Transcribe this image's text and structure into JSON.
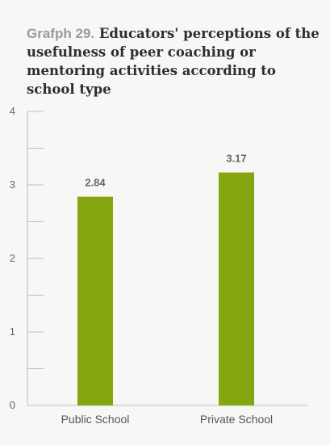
{
  "chart_data": {
    "type": "bar",
    "title_prefix": "Grafph 29.",
    "title": "Educators' perceptions of the usefulness of peer coaching or mentoring activities according to school type",
    "categories": [
      "Public School",
      "Private School"
    ],
    "values": [
      2.84,
      3.17
    ],
    "value_labels": [
      "2.84",
      "3.17"
    ],
    "ylim": [
      0,
      4
    ],
    "yticks": [
      0,
      1,
      2,
      3,
      4
    ],
    "xlabel": "",
    "ylabel": "",
    "grid": false,
    "bar_color": "#86a610",
    "axis_color": "#bdbdbd"
  }
}
